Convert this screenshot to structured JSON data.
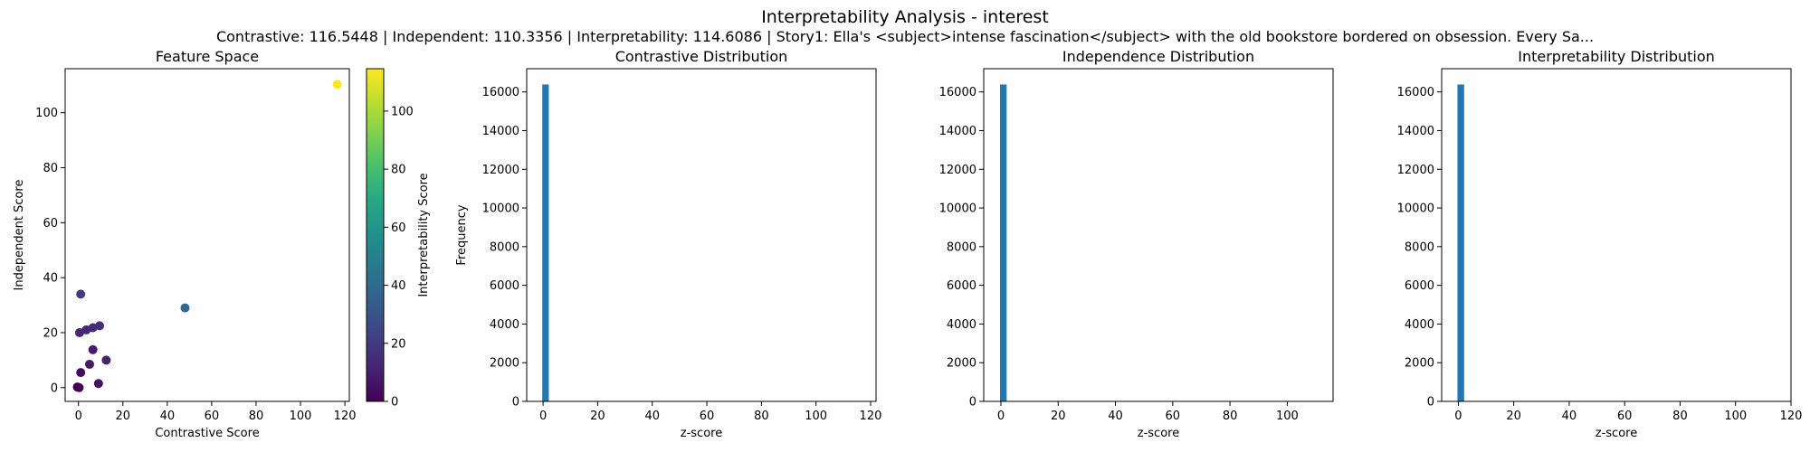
{
  "figure": {
    "title": "Interpretability Analysis - interest",
    "subtitle": "Contrastive: 116.5448 | Independent: 110.3356 | Interpretability: 114.6086 | Story1: Ella's <subject>intense fascination</subject> with the old bookstore bordered on obsession. Every Sa..."
  },
  "chart_data": [
    {
      "type": "scatter",
      "title": "Feature Space",
      "xlabel": "Contrastive Score",
      "ylabel": "Independent Score",
      "xlim": [
        -6,
        122
      ],
      "ylim": [
        -5,
        116
      ],
      "xticks": [
        0,
        20,
        40,
        60,
        80,
        100,
        120
      ],
      "yticks": [
        0,
        20,
        40,
        60,
        80,
        100
      ],
      "grid": false,
      "colorbar": {
        "label": "Interpretability Score",
        "colormap": "viridis",
        "range": [
          0,
          114.6086
        ],
        "ticks": [
          0,
          20,
          40,
          60,
          80,
          100
        ]
      },
      "points": [
        {
          "x": 116.5,
          "y": 110.3,
          "c": 114.6
        },
        {
          "x": 48.0,
          "y": 29.0,
          "c": 40.0
        },
        {
          "x": 1.0,
          "y": 34.0,
          "c": 20.0
        },
        {
          "x": 0.5,
          "y": 20.0,
          "c": 12.0
        },
        {
          "x": 3.5,
          "y": 21.0,
          "c": 13.0
        },
        {
          "x": 6.5,
          "y": 21.8,
          "c": 14.0
        },
        {
          "x": 9.5,
          "y": 22.5,
          "c": 15.0
        },
        {
          "x": 6.5,
          "y": 13.8,
          "c": 9.0
        },
        {
          "x": 12.5,
          "y": 10.0,
          "c": 11.0
        },
        {
          "x": 5.0,
          "y": 8.5,
          "c": 8.0
        },
        {
          "x": 1.0,
          "y": 5.5,
          "c": 3.0
        },
        {
          "x": 9.0,
          "y": 1.5,
          "c": 5.0
        },
        {
          "x": -0.5,
          "y": 0.2,
          "c": 0.2
        },
        {
          "x": 0.3,
          "y": 0.0,
          "c": 0.0
        }
      ]
    },
    {
      "type": "bar",
      "title": "Contrastive Distribution",
      "xlabel": "z-score",
      "ylabel": "Frequency",
      "xlim": [
        -6,
        122
      ],
      "ylim": [
        0,
        17200
      ],
      "xticks": [
        0,
        20,
        40,
        60,
        80,
        100,
        120
      ],
      "yticks": [
        0,
        2000,
        4000,
        6000,
        8000,
        10000,
        12000,
        14000,
        16000
      ],
      "grid": false,
      "bars": [
        {
          "x0": -0.3,
          "x1": 2.1,
          "value": 16384
        }
      ]
    },
    {
      "type": "bar",
      "title": "Independence Distribution",
      "xlabel": "z-score",
      "ylabel": "",
      "xlim": [
        -6,
        116
      ],
      "ylim": [
        0,
        17200
      ],
      "xticks": [
        0,
        20,
        40,
        60,
        80,
        100
      ],
      "yticks": [
        0,
        2000,
        4000,
        6000,
        8000,
        10000,
        12000,
        14000,
        16000
      ],
      "grid": false,
      "bars": [
        {
          "x0": -0.3,
          "x1": 2.0,
          "value": 16384
        }
      ]
    },
    {
      "type": "bar",
      "title": "Interpretability Distribution",
      "xlabel": "z-score",
      "ylabel": "",
      "xlim": [
        -6,
        120
      ],
      "ylim": [
        0,
        17200
      ],
      "xticks": [
        0,
        20,
        40,
        60,
        80,
        100,
        120
      ],
      "yticks": [
        0,
        2000,
        4000,
        6000,
        8000,
        10000,
        12000,
        14000,
        16000
      ],
      "grid": false,
      "bars": [
        {
          "x0": -0.3,
          "x1": 2.1,
          "value": 16384
        }
      ]
    }
  ],
  "colors": {
    "bar": "#1f77b4",
    "axis": "#000000",
    "background": "#ffffff"
  }
}
